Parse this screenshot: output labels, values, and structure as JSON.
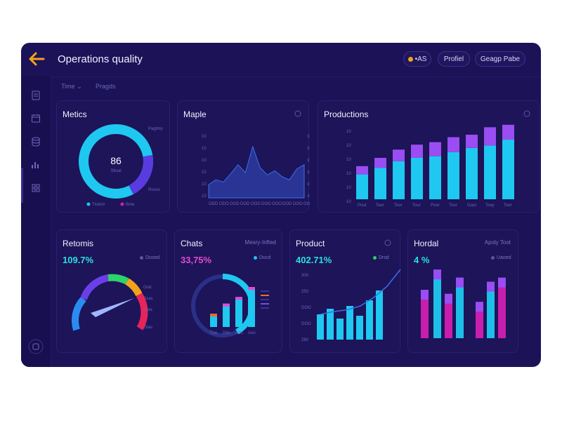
{
  "header": {
    "title": "Operations quality",
    "pill_1": "•AS",
    "pill_2": "Profiel",
    "pill_3": "Geagp Pabe"
  },
  "filters": {
    "time_label": "Time",
    "second_label": "Pragds"
  },
  "colors": {
    "background": "#1b1258",
    "accent_cyan": "#1ec8f0",
    "accent_purple": "#9a4df2",
    "accent_magenta": "#d21fb3",
    "accent_orange": "#f0a41a"
  },
  "sidebar": {
    "icons": [
      "document-icon",
      "calendar-icon",
      "database-icon",
      "chart-icon",
      "grid-icon",
      "settings-icon"
    ]
  },
  "cards": {
    "metrics": {
      "title": "Metics",
      "center_value": "86",
      "center_sub": "Sttoal",
      "label_top": "Pagtmp",
      "label_bottom": "Rnces",
      "legend_1": "Ttoiom",
      "legend_2": "Bnte"
    },
    "maple": {
      "title": "Maple",
      "x_ticks": [
        "ODD",
        "ODO",
        "OOD",
        "DOD",
        "OOD",
        "DOO",
        "OOO",
        "DOD",
        "DOO",
        "OOO"
      ]
    },
    "productions": {
      "title": "Productions",
      "x_ticks": [
        "Pout",
        "Teer",
        "Tour",
        "Tour",
        "Poor",
        "Tour",
        "Gaur",
        "Toey",
        "Toer"
      ]
    },
    "returns": {
      "title": "Retomis",
      "value": "109.7%",
      "legend": "Dosed",
      "labels": [
        "Orat",
        "Dsas",
        "Ceta",
        "Elias"
      ]
    },
    "chats": {
      "title": "Chats",
      "subtitle": "Mesry-Infted",
      "value": "33,75%",
      "legend": "Docd",
      "x_ticks": [
        "Tuo",
        "Dtio",
        "Aoo",
        "Aoo"
      ]
    },
    "product": {
      "title": "Product",
      "value": "402.71%",
      "legend": "Drsd",
      "y_ticks": [
        "300",
        "250",
        "DOO",
        "DOO",
        "280"
      ]
    },
    "hordal": {
      "title": "Hordal",
      "subtitle": "Apoly Toot",
      "value": "4 %",
      "legend": "Uaoed"
    }
  },
  "chart_data": [
    {
      "type": "pie",
      "title": "Metics",
      "values": [
        80,
        20
      ],
      "center_value": "86"
    },
    {
      "type": "area",
      "title": "Maple",
      "values": [
        22,
        30,
        26,
        40,
        55,
        42,
        85,
        50,
        38,
        45,
        35,
        30,
        48,
        55
      ]
    },
    {
      "type": "bar",
      "title": "Productions",
      "series": [
        {
          "name": "cyan",
          "values": [
            30,
            38,
            46,
            50,
            52,
            57,
            62,
            65,
            72
          ]
        },
        {
          "name": "purple",
          "values": [
            10,
            12,
            14,
            16,
            17,
            18,
            16,
            22,
            18
          ]
        }
      ]
    },
    {
      "type": "gauge",
      "title": "Retomis",
      "value": 72
    },
    {
      "type": "bar",
      "title": "Chats",
      "values": [
        20,
        35,
        45,
        60
      ],
      "ring_fraction": 0.7
    },
    {
      "type": "bar",
      "title": "Product",
      "values": [
        36,
        44,
        30,
        48,
        34,
        56,
        70
      ],
      "trend": [
        20,
        25,
        28,
        35,
        50,
        70,
        100
      ]
    },
    {
      "type": "bar",
      "title": "Hordal",
      "values": [
        60,
        85,
        55,
        75,
        45,
        70,
        75
      ]
    }
  ]
}
